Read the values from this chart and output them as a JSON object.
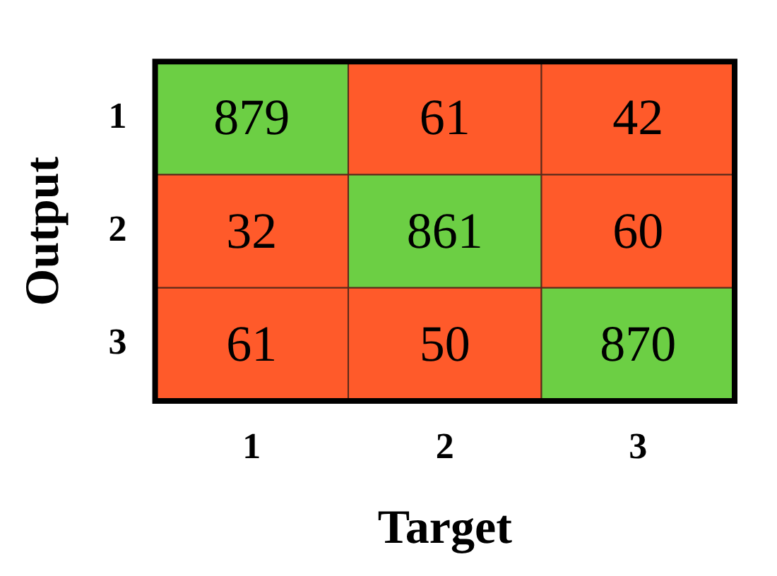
{
  "chart_data": {
    "type": "heatmap",
    "xlabel": "Target",
    "ylabel": "Output",
    "data_labels": true,
    "categories": [
      "1",
      "2",
      "3"
    ],
    "y_categories": [
      "1",
      "2",
      "3"
    ],
    "cells": [
      [
        879,
        61,
        42
      ],
      [
        32,
        861,
        60
      ],
      [
        61,
        50,
        870
      ]
    ],
    "colors": [
      "#6ccf44",
      "#ff5a2a",
      "#ff5a2a",
      "#ff5a2a",
      "#6ccf44",
      "#ff5a2a",
      "#ff5a2a",
      "#ff5a2a",
      "#6ccf44"
    ]
  }
}
